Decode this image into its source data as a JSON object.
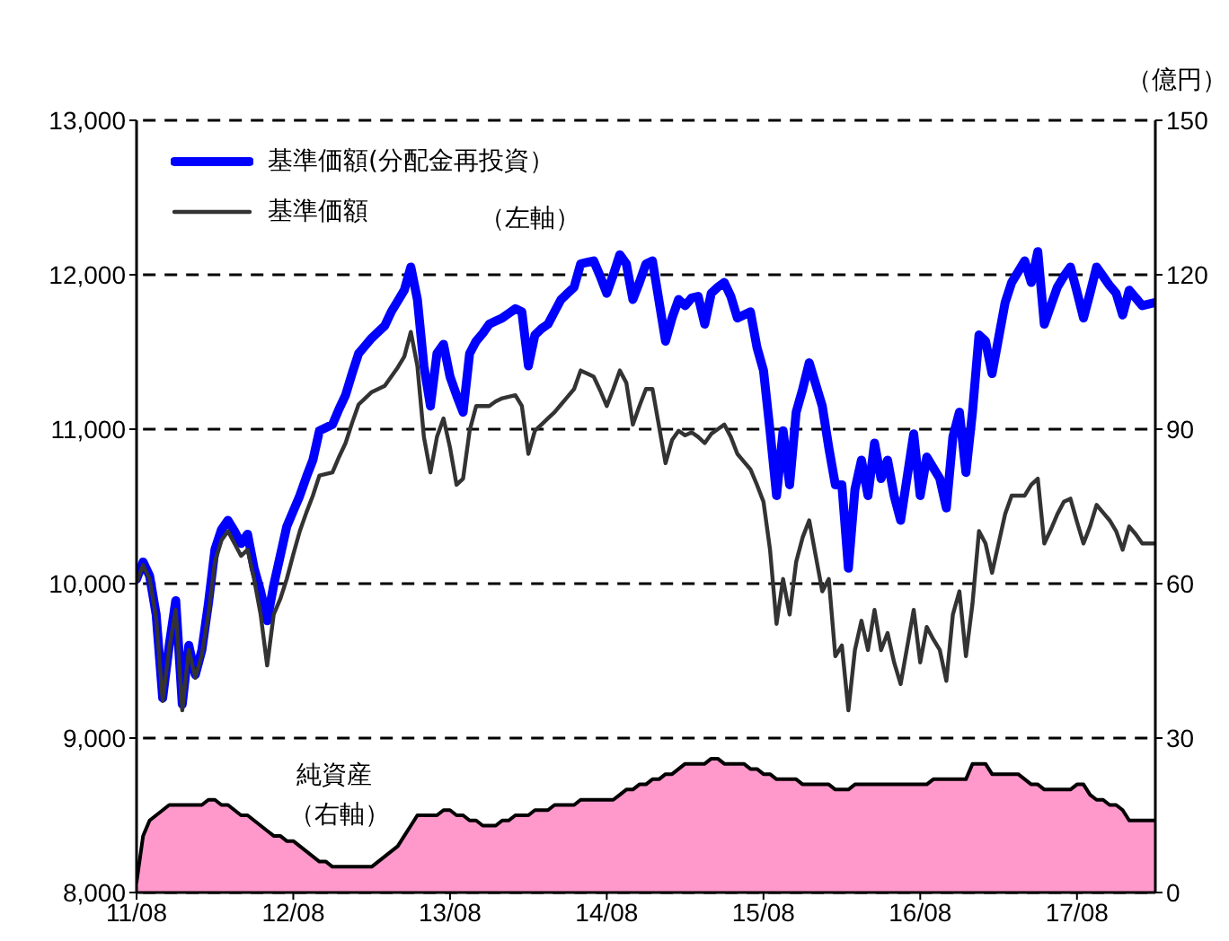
{
  "chart_data": {
    "type": "line",
    "categories": [
      "11/08",
      null,
      null,
      null,
      null,
      null,
      null,
      null,
      null,
      null,
      null,
      null,
      null,
      null,
      null,
      null,
      null,
      null,
      null,
      null,
      null,
      null,
      null,
      null,
      "12/08",
      null,
      null,
      null,
      null,
      null,
      null,
      null,
      null,
      null,
      null,
      null,
      null,
      null,
      null,
      null,
      null,
      null,
      null,
      null,
      null,
      null,
      null,
      null,
      "13/08",
      null,
      null,
      null,
      null,
      null,
      null,
      null,
      null,
      null,
      null,
      null,
      null,
      null,
      null,
      null,
      null,
      null,
      null,
      null,
      null,
      null,
      null,
      null,
      "14/08",
      null,
      null,
      null,
      null,
      null,
      null,
      null,
      null,
      null,
      null,
      null,
      null,
      null,
      null,
      null,
      null,
      null,
      null,
      null,
      null,
      null,
      null,
      null,
      "15/08",
      null,
      null,
      null,
      null,
      null,
      null,
      null,
      null,
      null,
      null,
      null,
      null,
      null,
      null,
      null,
      null,
      null,
      null,
      null,
      null,
      null,
      null,
      null,
      "16/08",
      null,
      null,
      null,
      null,
      null,
      null,
      null,
      null,
      null,
      null,
      null,
      null,
      null,
      null,
      null,
      null,
      null,
      null,
      null,
      null,
      null,
      null,
      null,
      "17/08",
      null,
      null,
      null,
      null,
      null,
      null,
      null,
      null,
      null,
      null,
      null,
      null
    ],
    "series": [
      {
        "name": "基準価額(分配金再投資）",
        "color": "#0000ff",
        "values": [
          10030,
          10140,
          10050,
          9800,
          9260,
          9600,
          9890,
          9220,
          9600,
          9410,
          9570,
          9870,
          10220,
          10350,
          10410,
          10340,
          10260,
          10320,
          10100,
          9950,
          9760,
          9990,
          10180,
          10370,
          10470,
          10570,
          10690,
          10800,
          10990,
          11010,
          11030,
          11130,
          11220,
          11360,
          11490,
          11540,
          11590,
          11630,
          11670,
          11760,
          11830,
          11900,
          12050,
          11840,
          11410,
          11150,
          11490,
          11550,
          11340,
          11220,
          11110,
          11490,
          11570,
          11620,
          11680,
          11700,
          11720,
          11750,
          11780,
          11760,
          11410,
          11610,
          11650,
          11680,
          11760,
          11840,
          11880,
          11920,
          12070,
          12080,
          12090,
          11990,
          11880,
          12000,
          12130,
          12070,
          11840,
          11950,
          12070,
          12090,
          11830,
          11570,
          11720,
          11840,
          11800,
          11850,
          11860,
          11680,
          11880,
          11920,
          11950,
          11860,
          11720,
          11740,
          11760,
          11530,
          11380,
          10990,
          10570,
          10990,
          10640,
          11110,
          11260,
          11430,
          11290,
          11150,
          10880,
          10640,
          10640,
          10100,
          10610,
          10800,
          10570,
          10910,
          10680,
          10800,
          10570,
          10410,
          10690,
          10970,
          10570,
          10820,
          10750,
          10680,
          10490,
          10950,
          11110,
          10720,
          11110,
          11610,
          11570,
          11360,
          11590,
          11820,
          11950,
          12020,
          12090,
          11950,
          12150,
          11680,
          11800,
          11920,
          11990,
          12050,
          11890,
          11720,
          11880,
          12050,
          11990,
          11930,
          11880,
          11740,
          11900,
          11850,
          11800,
          11810,
          11820
        ]
      },
      {
        "name": "基準価額",
        "color": "#333333",
        "values": [
          10010,
          10120,
          10030,
          9780,
          9240,
          9580,
          9830,
          9180,
          9570,
          9390,
          9540,
          9800,
          10140,
          10280,
          10340,
          10260,
          10180,
          10220,
          10030,
          9800,
          9470,
          9800,
          9900,
          10030,
          10190,
          10340,
          10460,
          10570,
          10700,
          10710,
          10720,
          10820,
          10910,
          11040,
          11160,
          11200,
          11240,
          11260,
          11280,
          11340,
          11400,
          11470,
          11630,
          11410,
          10950,
          10720,
          10950,
          11070,
          10880,
          10640,
          10680,
          10990,
          11150,
          11150,
          11150,
          11180,
          11200,
          11210,
          11220,
          11150,
          10840,
          10990,
          11030,
          11070,
          11110,
          11160,
          11210,
          11260,
          11380,
          11360,
          11340,
          11250,
          11150,
          11260,
          11380,
          11300,
          11030,
          11150,
          11260,
          11260,
          11020,
          10780,
          10930,
          10990,
          10960,
          10980,
          10950,
          10910,
          10970,
          11000,
          11030,
          10950,
          10840,
          10790,
          10740,
          10640,
          10530,
          10220,
          9740,
          10030,
          9800,
          10140,
          10300,
          10410,
          10180,
          9950,
          10030,
          9530,
          9600,
          9180,
          9570,
          9760,
          9570,
          9830,
          9570,
          9680,
          9490,
          9350,
          9590,
          9830,
          9490,
          9720,
          9640,
          9570,
          9370,
          9800,
          9950,
          9530,
          9870,
          10340,
          10260,
          10070,
          10260,
          10450,
          10570,
          10570,
          10570,
          10640,
          10680,
          10260,
          10350,
          10450,
          10530,
          10550,
          10400,
          10260,
          10370,
          10510,
          10460,
          10410,
          10340,
          10220,
          10370,
          10320,
          10260,
          10260,
          10260
        ]
      },
      {
        "name": "純資産",
        "type": "area",
        "axis": "y2",
        "color": "#ff99cc",
        "values": [
          2,
          11,
          14,
          15,
          16,
          17,
          17,
          17,
          17,
          17,
          17,
          18,
          18,
          17,
          17,
          16,
          15,
          15,
          14,
          13,
          12,
          11,
          11,
          10,
          10,
          9,
          8,
          7,
          6,
          6,
          5,
          5,
          5,
          5,
          5,
          5,
          5,
          6,
          7,
          8,
          9,
          11,
          13,
          15,
          15,
          15,
          15,
          16,
          16,
          15,
          15,
          14,
          14,
          13,
          13,
          13,
          14,
          14,
          15,
          15,
          15,
          16,
          16,
          16,
          17,
          17,
          17,
          17,
          18,
          18,
          18,
          18,
          18,
          18,
          19,
          20,
          20,
          21,
          21,
          22,
          22,
          23,
          23,
          24,
          25,
          25,
          25,
          25,
          26,
          26,
          25,
          25,
          25,
          25,
          24,
          24,
          23,
          23,
          22,
          22,
          22,
          22,
          21,
          21,
          21,
          21,
          21,
          20,
          20,
          20,
          21,
          21,
          21,
          21,
          21,
          21,
          21,
          21,
          21,
          21,
          21,
          21,
          22,
          22,
          22,
          22,
          22,
          22,
          25,
          25,
          25,
          23,
          23,
          23,
          23,
          23,
          22,
          21,
          21,
          20,
          20,
          20,
          20,
          20,
          21,
          21,
          19,
          18,
          18,
          17,
          17,
          16,
          14,
          14,
          14,
          14,
          14
        ]
      }
    ],
    "y2label": "（億円）",
    "annotations": [
      "（左軸）",
      "（右軸）"
    ],
    "ylim": [
      8000,
      13000
    ],
    "yticks": [
      {
        "value": 8000,
        "label": "8,000"
      },
      {
        "value": 9000,
        "label": "9,000"
      },
      {
        "value": 10000,
        "label": "10,000"
      },
      {
        "value": 11000,
        "label": "11,000"
      },
      {
        "value": 12000,
        "label": "12,000"
      },
      {
        "value": 13000,
        "label": "13,000"
      }
    ],
    "y2lim": [
      0,
      150
    ],
    "y2ticks": [
      0,
      30,
      60,
      90,
      120,
      150
    ],
    "grid": "y",
    "legend": "top left"
  }
}
